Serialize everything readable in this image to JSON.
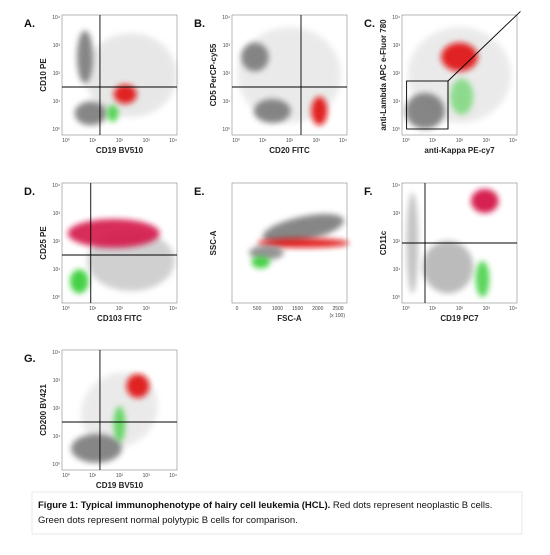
{
  "panels": [
    {
      "letter": "A.",
      "x_label": "CD19 BV510",
      "y_label": "CD10 PE"
    },
    {
      "letter": "B.",
      "x_label": "CD20 FITC",
      "y_label": "CD5 PerCP-cy55"
    },
    {
      "letter": "C.",
      "x_label": "anti-Kappa PE-cy7",
      "y_label": "anti-Lambda APC e-Fluor 780"
    },
    {
      "letter": "D.",
      "x_label": "CD103 FITC",
      "y_label": "CD25 PE"
    },
    {
      "letter": "E.",
      "x_label": "FSC-A",
      "y_label": "SSC-A",
      "x_ticks": [
        "0",
        "500",
        "1000",
        "1500",
        "2000",
        "2500"
      ],
      "x_unit": "(x 100)"
    },
    {
      "letter": "F.",
      "x_label": "CD19 PC7",
      "y_label": "CD11c"
    },
    {
      "letter": "G.",
      "x_label": "CD19 BV510",
      "y_label": "CD200 BV421"
    }
  ],
  "log_ticks": [
    "10⁰",
    "10¹",
    "10²",
    "10³",
    "10⁴"
  ],
  "caption": {
    "bold": "Figure 1: Typical immunophenotype of hairy cell leukemia (HCL).",
    "line1": " Red dots represent neoplastic B cells.",
    "line2": "Green dots represent normal polytypic B cells for comparison."
  }
}
